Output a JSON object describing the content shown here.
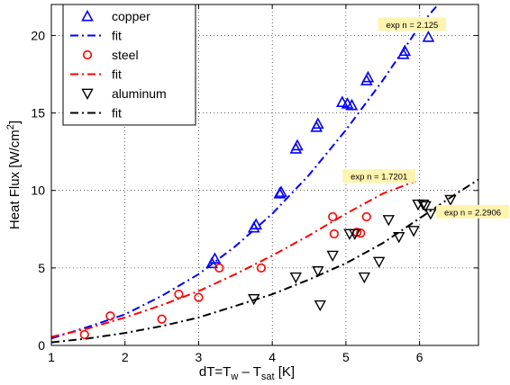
{
  "chart_data": {
    "type": "scatter",
    "xlabel": {
      "pre": "dT=T",
      "sub1": "w",
      "mid": " – T",
      "sub2": "sat",
      "post": " [K]"
    },
    "ylabel": {
      "pre": "Heat Flux [W/cm",
      "sup": "2",
      "post": "]"
    },
    "xlim": [
      1,
      6.8
    ],
    "ylim": [
      0,
      22
    ],
    "xticks": [
      1,
      2,
      3,
      4,
      5,
      6
    ],
    "yticks": [
      0,
      5,
      10,
      15,
      20
    ],
    "grid": true,
    "legend_position": "top-left",
    "series": [
      {
        "name": "copper",
        "marker": "triangle-up",
        "color": "#0000ff",
        "points": [
          [
            3.18,
            5.3
          ],
          [
            3.22,
            5.6
          ],
          [
            3.75,
            7.6
          ],
          [
            3.78,
            7.8
          ],
          [
            4.1,
            9.8
          ],
          [
            4.12,
            9.9
          ],
          [
            4.32,
            12.7
          ],
          [
            4.34,
            12.9
          ],
          [
            4.6,
            14.1
          ],
          [
            4.62,
            14.3
          ],
          [
            4.95,
            15.7
          ],
          [
            5.02,
            15.6
          ],
          [
            5.08,
            15.5
          ],
          [
            5.28,
            17.1
          ],
          [
            5.3,
            17.3
          ],
          [
            5.78,
            18.8
          ],
          [
            5.8,
            19.0
          ],
          [
            6.12,
            19.9
          ]
        ]
      },
      {
        "name": "steel",
        "marker": "circle",
        "color": "#ff0000",
        "points": [
          [
            1.45,
            0.7
          ],
          [
            1.8,
            1.9
          ],
          [
            2.5,
            1.7
          ],
          [
            2.73,
            3.3
          ],
          [
            3.0,
            3.1
          ],
          [
            3.28,
            5.0
          ],
          [
            3.85,
            5.0
          ],
          [
            4.82,
            8.3
          ],
          [
            4.84,
            7.2
          ],
          [
            5.15,
            7.3
          ],
          [
            5.2,
            7.25
          ],
          [
            5.28,
            8.3
          ]
        ]
      },
      {
        "name": "aluminum",
        "marker": "triangle-down",
        "color": "#000000",
        "points": [
          [
            3.75,
            3.0
          ],
          [
            4.32,
            4.4
          ],
          [
            4.62,
            4.8
          ],
          [
            4.65,
            2.6
          ],
          [
            4.82,
            5.8
          ],
          [
            5.05,
            7.2
          ],
          [
            5.12,
            7.2
          ],
          [
            5.25,
            4.4
          ],
          [
            5.45,
            5.4
          ],
          [
            5.58,
            8.1
          ],
          [
            5.72,
            7.0
          ],
          [
            5.92,
            7.4
          ],
          [
            5.98,
            9.1
          ],
          [
            6.05,
            9.1
          ],
          [
            6.08,
            9.0
          ],
          [
            6.15,
            8.5
          ],
          [
            6.42,
            9.4
          ]
        ]
      }
    ],
    "fits": [
      {
        "legend_label": "fit",
        "color": "#0000ff",
        "dash": "9 4 2 4",
        "points": [
          [
            1.0,
            0.45
          ],
          [
            1.5,
            1.2
          ],
          [
            2.0,
            2.0
          ],
          [
            2.5,
            3.2
          ],
          [
            3.0,
            4.6
          ],
          [
            3.5,
            6.4
          ],
          [
            4.0,
            8.5
          ],
          [
            4.5,
            11.0
          ],
          [
            5.0,
            13.9
          ],
          [
            5.5,
            17.1
          ],
          [
            6.0,
            20.6
          ],
          [
            6.25,
            22.0
          ]
        ],
        "annotation": "exp n = 2.125"
      },
      {
        "legend_label": "fit",
        "color": "#ff0000",
        "dash": "9 4 2 4",
        "points": [
          [
            1.0,
            0.55
          ],
          [
            1.5,
            1.1
          ],
          [
            2.0,
            1.8
          ],
          [
            2.5,
            2.6
          ],
          [
            3.0,
            3.5
          ],
          [
            3.5,
            4.6
          ],
          [
            4.0,
            5.8
          ],
          [
            4.5,
            7.1
          ],
          [
            5.0,
            8.5
          ],
          [
            5.5,
            9.8
          ],
          [
            5.95,
            10.6
          ]
        ],
        "annotation": "exp n = 1.7201"
      },
      {
        "legend_label": "fit",
        "color": "#000000",
        "dash": "9 4 2 4",
        "points": [
          [
            1.0,
            0.2
          ],
          [
            1.5,
            0.45
          ],
          [
            2.0,
            0.8
          ],
          [
            2.5,
            1.25
          ],
          [
            3.0,
            1.8
          ],
          [
            3.5,
            2.55
          ],
          [
            4.0,
            3.3
          ],
          [
            4.5,
            4.25
          ],
          [
            5.0,
            5.3
          ],
          [
            5.5,
            6.6
          ],
          [
            6.0,
            8.2
          ],
          [
            6.5,
            9.8
          ],
          [
            6.8,
            10.7
          ]
        ],
        "annotation": "exp n = 2.2906"
      }
    ],
    "legend": {
      "entries": [
        "copper",
        "fit",
        "steel",
        "fit",
        "aluminum",
        "fit"
      ]
    },
    "annotation_fill": "#fff3b0"
  }
}
